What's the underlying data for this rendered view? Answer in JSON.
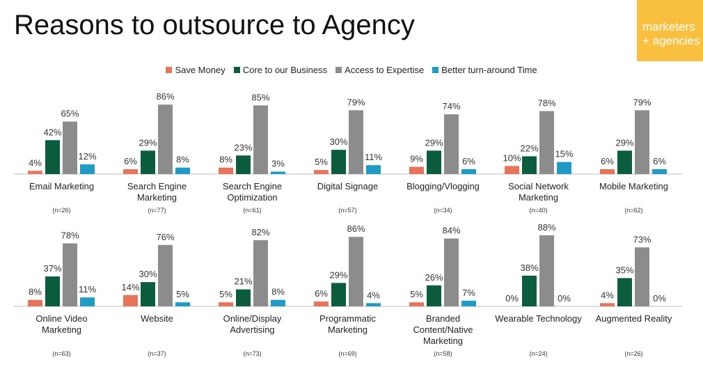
{
  "title": "Reasons to outsource to Agency",
  "logo": [
    "marketers",
    "+ agencies"
  ],
  "chart_data": [
    {
      "type": "bar",
      "categories": [
        "Email Marketing",
        "Search Engine Marketing",
        "Search Engine Optimization",
        "Digital Signage",
        "Blogging/Vlogging",
        "Social Network Marketing",
        "Mobile Marketing"
      ],
      "sample_sizes": [
        "(n=26)",
        "(n=77)",
        "(n=61)",
        "(n=57)",
        "(n=34)",
        "(n=40)",
        "(n=62)"
      ],
      "ylim": [
        0,
        100
      ],
      "series": [
        {
          "name": "Save Money",
          "color": "#e8735a",
          "values": [
            4,
            6,
            8,
            5,
            9,
            10,
            6
          ],
          "value_labels": [
            "4%",
            "6%",
            "8%",
            "5%",
            "9%",
            "10%",
            "6%"
          ]
        },
        {
          "name": "Core to our Business",
          "color": "#0b5d3e",
          "values": [
            42,
            29,
            23,
            30,
            29,
            22,
            29
          ],
          "value_labels": [
            "42%",
            "29%",
            "23%",
            "30%",
            "29%",
            "22%",
            "29%"
          ]
        },
        {
          "name": "Access to Expertise",
          "color": "#8c8c8c",
          "values": [
            65,
            86,
            85,
            79,
            74,
            78,
            79
          ],
          "value_labels": [
            "65%",
            "86%",
            "85%",
            "79%",
            "74%",
            "78%",
            "79%"
          ]
        },
        {
          "name": "Better turn-around Time",
          "color": "#1f9bc4",
          "values": [
            12,
            8,
            3,
            11,
            6,
            15,
            6
          ],
          "value_labels": [
            "12%",
            "8%",
            "3%",
            "11%",
            "6%",
            "15%",
            "6%"
          ]
        }
      ]
    },
    {
      "type": "bar",
      "categories": [
        "Online Video Marketing",
        "Website",
        "Online/Display Advertising",
        "Programmatic Marketing",
        "Branded Content/Native Marketing",
        "Wearable Technology",
        "Augmented Reality"
      ],
      "sample_sizes": [
        "(n=63)",
        "(n=37)",
        "(n=73)",
        "(n=69)",
        "(n=58)",
        "(n=24)",
        "(n=26)"
      ],
      "ylim": [
        0,
        100
      ],
      "series": [
        {
          "name": "Save Money",
          "color": "#e8735a",
          "values": [
            8,
            14,
            5,
            6,
            5,
            0,
            4
          ],
          "value_labels": [
            "8%",
            "14%",
            "5%",
            "6%",
            "5%",
            "0%",
            "4%"
          ]
        },
        {
          "name": "Core to our Business",
          "color": "#0b5d3e",
          "values": [
            37,
            30,
            21,
            29,
            26,
            38,
            35
          ],
          "value_labels": [
            "37%",
            "30%",
            "21%",
            "29%",
            "26%",
            "38%",
            "35%"
          ]
        },
        {
          "name": "Access to Expertise",
          "color": "#8c8c8c",
          "values": [
            78,
            76,
            82,
            86,
            84,
            88,
            73
          ],
          "value_labels": [
            "78%",
            "76%",
            "82%",
            "86%",
            "84%",
            "88%",
            "73%"
          ]
        },
        {
          "name": "Better turn-around Time",
          "color": "#1f9bc4",
          "values": [
            11,
            5,
            8,
            4,
            7,
            0,
            0
          ],
          "value_labels": [
            "11%",
            "5%",
            "8%",
            "4%",
            "7%",
            "0%",
            "0%"
          ]
        }
      ]
    }
  ]
}
